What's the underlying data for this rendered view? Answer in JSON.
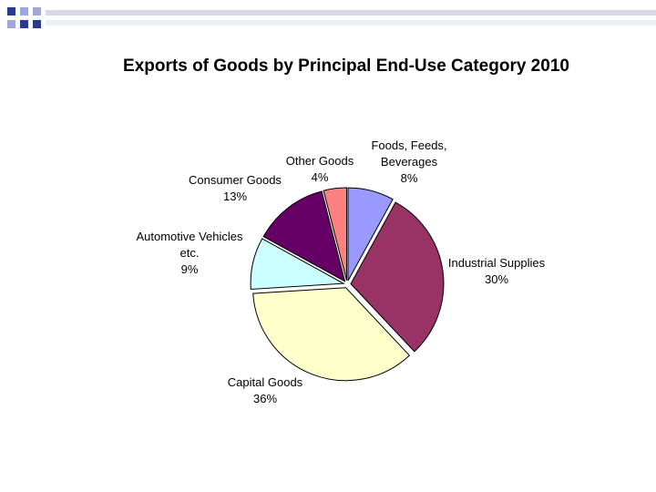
{
  "slide": {
    "title": "Exports of Goods by Principal End-Use Category 2010"
  },
  "chart_data": {
    "type": "pie",
    "title": "Exports of Goods by Principal End-Use Category 2010",
    "slices": [
      {
        "label": [
          "Foods, Feeds,",
          "Beverages"
        ],
        "percent_label": "8%",
        "value": 8,
        "color": "#9999ff"
      },
      {
        "label": [
          "Industrial Supplies"
        ],
        "percent_label": "30%",
        "value": 30,
        "color": "#993366"
      },
      {
        "label": [
          "Capital Goods"
        ],
        "percent_label": "36%",
        "value": 36,
        "color": "#ffffcc"
      },
      {
        "label": [
          "Automotive Vehicles",
          "etc."
        ],
        "percent_label": "9%",
        "value": 9,
        "color": "#ccffff"
      },
      {
        "label": [
          "Consumer Goods"
        ],
        "percent_label": "13%",
        "value": 13,
        "color": "#660066"
      },
      {
        "label": [
          "Other Goods"
        ],
        "percent_label": "4%",
        "value": 4,
        "color": "#ff8080"
      }
    ],
    "legend": "none",
    "exploded": true
  }
}
